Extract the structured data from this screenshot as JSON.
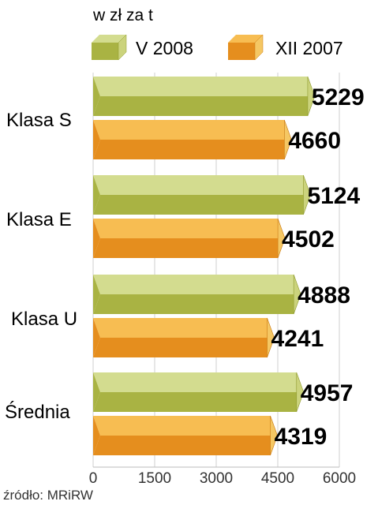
{
  "chart_data": {
    "type": "bar",
    "orientation": "horizontal",
    "unit_label": "w zł za t",
    "categories": [
      "Klasa S",
      "Klasa E",
      "Klasa U",
      "Średnia"
    ],
    "series": [
      {
        "name": "V 2008",
        "values": [
          5229,
          5124,
          4888,
          4957
        ]
      },
      {
        "name": "XII 2007",
        "values": [
          4660,
          4502,
          4241,
          4319
        ]
      }
    ],
    "value_labels": [
      [
        "5229",
        "4660"
      ],
      [
        "5124",
        "4502"
      ],
      [
        "4888",
        "4241"
      ],
      [
        "4957",
        "4319"
      ]
    ],
    "xlim": [
      0,
      6000
    ],
    "xticks": [
      0,
      1500,
      3000,
      4500,
      6000
    ],
    "xtick_labels": [
      "0",
      "1500",
      "3000",
      "4500",
      "6000"
    ],
    "grid": true,
    "legend_position": "top",
    "colors": {
      "V 2008": {
        "top": "#d3dc8f",
        "bottom": "#a9b343",
        "side": "#cbd37c",
        "edge": "#8f9a2e"
      },
      "XII 2007": {
        "top": "#f7bd52",
        "bottom": "#e58e1e",
        "side": "#f5c763",
        "edge": "#c97812"
      }
    },
    "source": "źródło: MRiRW"
  }
}
